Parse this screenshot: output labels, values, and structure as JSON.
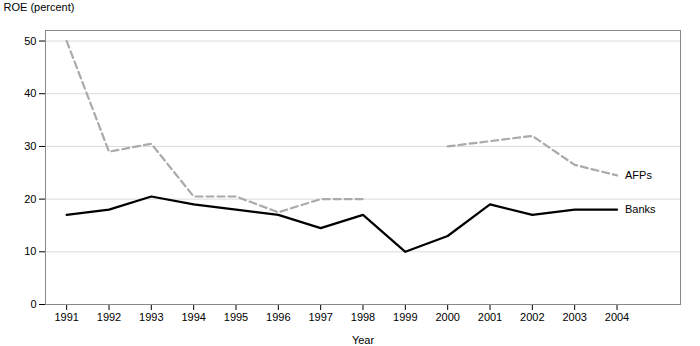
{
  "chart_data": {
    "type": "line",
    "x": [
      1991,
      1992,
      1993,
      1994,
      1995,
      1996,
      1997,
      1998,
      1999,
      2000,
      2001,
      2002,
      2003,
      2004
    ],
    "xlabel": "Year",
    "ylabel": "ROE (percent)",
    "xlim": [
      1990.5,
      2005.5
    ],
    "xticks": [
      1991,
      1992,
      1993,
      1994,
      1995,
      1996,
      1997,
      1998,
      1999,
      2000,
      2001,
      2002,
      2003,
      2004
    ],
    "ylim": [
      0,
      52
    ],
    "yticks": [
      0,
      10,
      20,
      30,
      40,
      50
    ],
    "grid": true,
    "series": [
      {
        "name": "Banks",
        "color": "#000000",
        "line_style": "solid",
        "values": [
          17,
          18,
          20.5,
          19,
          18,
          17,
          14.5,
          17,
          10,
          13,
          19,
          17,
          18,
          18
        ]
      },
      {
        "name": "AFPs",
        "color": "#aaaaaa",
        "line_style": "dashed",
        "values": [
          50,
          29,
          30.5,
          20.5,
          20.5,
          17.5,
          20,
          20,
          null,
          30,
          31,
          32,
          26.5,
          24.5
        ]
      }
    ]
  }
}
